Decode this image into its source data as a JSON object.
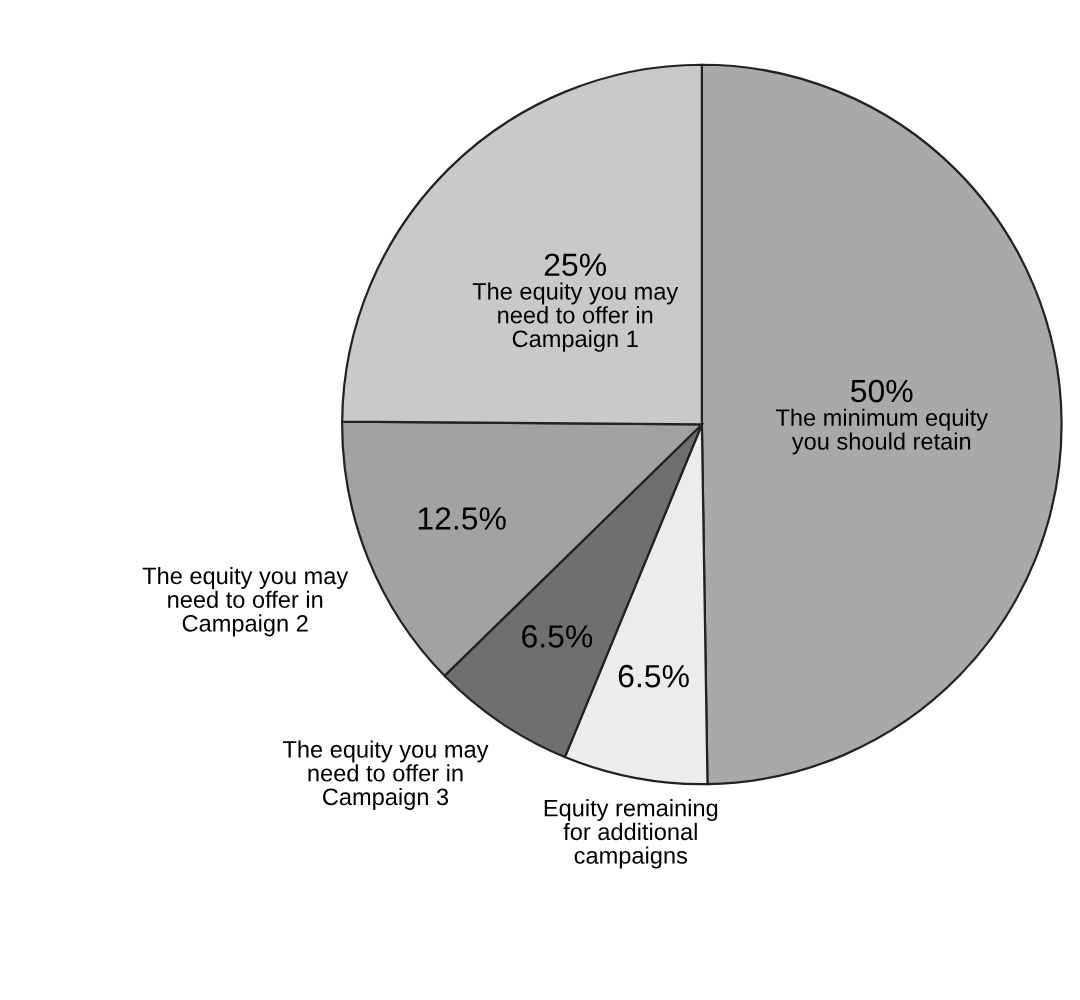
{
  "chart_data": {
    "type": "pie",
    "categories": [
      "The minimum equity\nyou should retain",
      "Equity remaining\nfor additional\ncampaigns",
      "The equity you may\nneed to offer in\nCampaign 3",
      "The equity you may\nneed to offer in\nCampaign 2",
      "The equity you may\nneed to offer in\nCampaign 1"
    ],
    "values": [
      50,
      6.5,
      6.5,
      12.5,
      25
    ],
    "value_labels": [
      "50%",
      "6.5%",
      "6.5%",
      "12.5%",
      "25%"
    ],
    "colors": [
      "#a9a9a9",
      "#ececec",
      "#6f6f6f",
      "#a2a2a2",
      "#c9c9c9"
    ]
  }
}
